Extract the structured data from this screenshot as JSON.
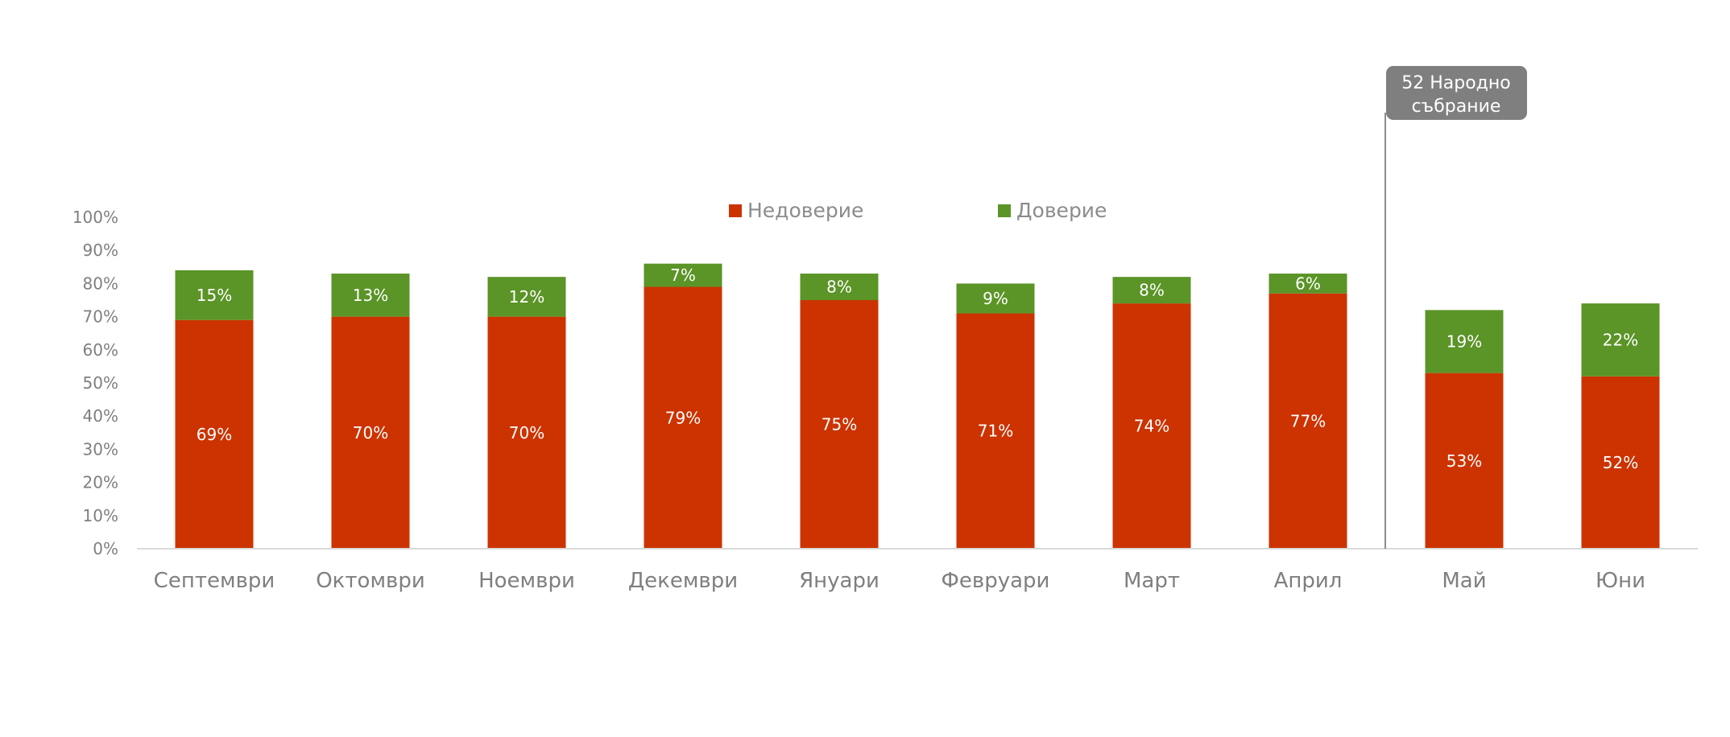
{
  "chart_data": {
    "type": "bar",
    "stacked": true,
    "categories": [
      "Септември",
      "Октомври",
      "Ноември",
      "Декември",
      "Януари",
      "Февруари",
      "Март",
      "Април",
      "Май",
      "Юни"
    ],
    "series": [
      {
        "name": "Недоверие",
        "color": "#cc3300",
        "values": [
          69,
          70,
          70,
          79,
          75,
          71,
          74,
          77,
          53,
          52
        ]
      },
      {
        "name": "Доверие",
        "color": "#5b9427",
        "values": [
          15,
          13,
          12,
          7,
          8,
          9,
          8,
          6,
          19,
          22
        ]
      }
    ],
    "value_suffix": "%",
    "ylim": [
      0,
      100
    ],
    "yticks": [
      "0%",
      "10%",
      "20%",
      "30%",
      "40%",
      "50%",
      "60%",
      "70%",
      "80%",
      "90%",
      "100%"
    ],
    "grid": false,
    "legend_position": "top-center",
    "annotation": {
      "lines": [
        "52 Народно",
        "събрание"
      ],
      "between_categories": [
        "Април",
        "Май"
      ],
      "color": "#7f7f7f"
    }
  }
}
